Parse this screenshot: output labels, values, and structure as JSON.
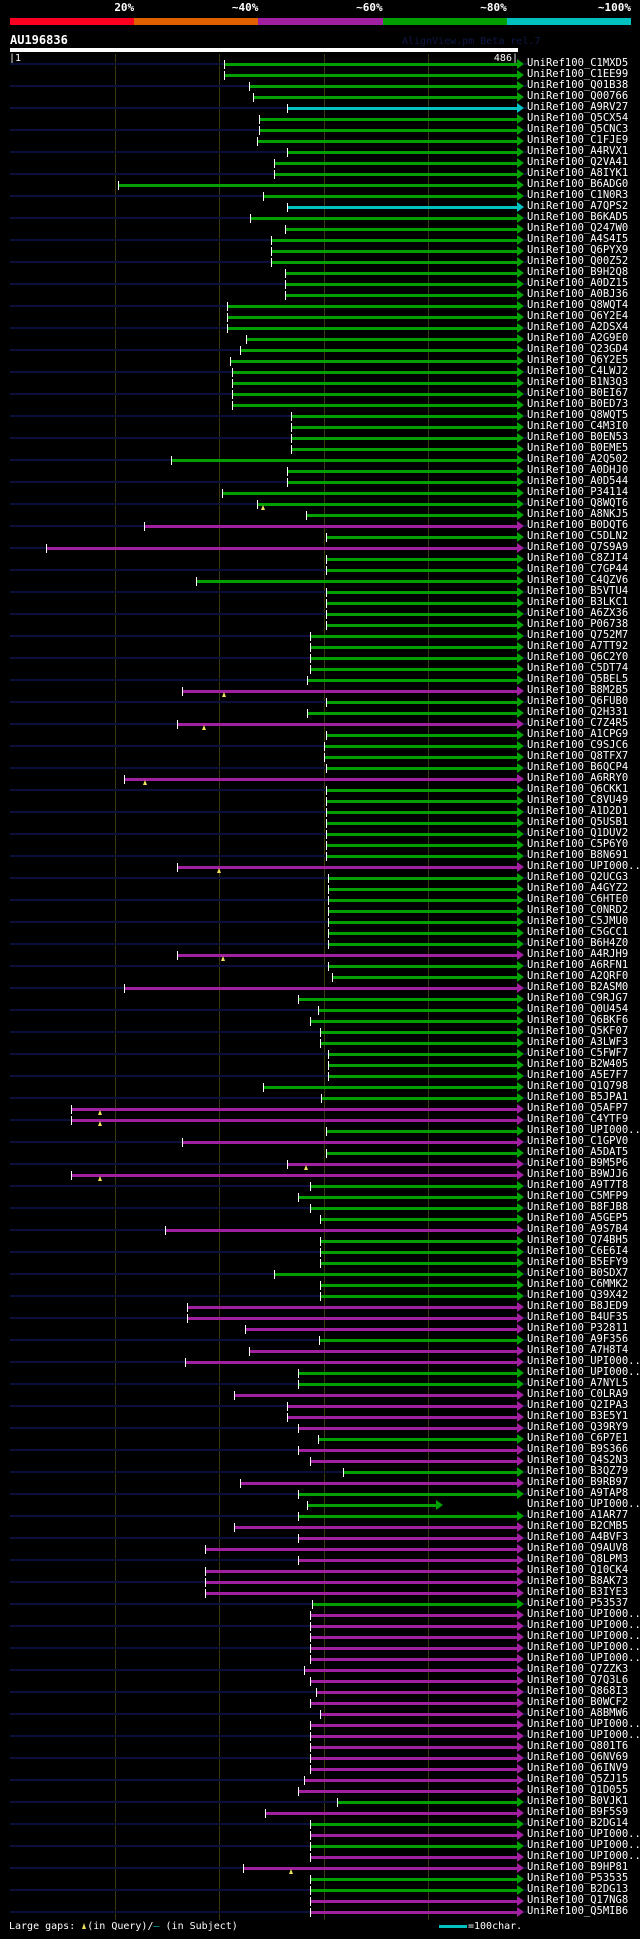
{
  "colors": {
    "g": "#00a000",
    "m": "#a020a0",
    "c": "#00c0c0",
    "red": "#ff0020",
    "orange": "#e06000"
  },
  "scale": {
    "labels": [
      "20%",
      "~40%",
      "~60%",
      "~80%",
      "~100%"
    ],
    "segments": [
      "#ff0020",
      "#e06000",
      "#a020a0",
      "#00a000",
      "#00c0c0"
    ]
  },
  "title": "AU196836",
  "credit": "AlignView.pm Beta rel.7",
  "axis": {
    "start_label": "|1",
    "end_label": "486|",
    "length": 486
  },
  "legend": {
    "prefix": "Large gaps: ",
    "query": "(in Query)/",
    "dash": "–",
    "subject": " (in Subject)",
    "scale": "=100char."
  },
  "rows": [
    [
      "UniRef100_C1MXD5",
      206,
      "g"
    ],
    [
      "UniRef100_C1EE99",
      206,
      "g"
    ],
    [
      "UniRef100_Q01B38",
      230,
      "g"
    ],
    [
      "UniRef100_Q00766",
      233,
      "g"
    ],
    [
      "UniRef100_A9RV27",
      266,
      "c"
    ],
    [
      "UniRef100_Q5CX54",
      239,
      "g"
    ],
    [
      "UniRef100_Q5CNC3",
      239,
      "g"
    ],
    [
      "UniRef100_C1FJE9",
      237,
      "g"
    ],
    [
      "UniRef100_A4RVX1",
      266,
      "g"
    ],
    [
      "UniRef100_Q2VA41",
      254,
      "g"
    ],
    [
      "UniRef100_A8IYK1",
      254,
      "g"
    ],
    [
      "UniRef100_B6ADG0",
      104,
      "g"
    ],
    [
      "UniRef100_C1N0R3",
      243,
      "g"
    ],
    [
      "UniRef100_A7QPS2",
      266,
      "c"
    ],
    [
      "UniRef100_B6KAD5",
      231,
      "g"
    ],
    [
      "UniRef100_Q247W0",
      264,
      "g"
    ],
    [
      "UniRef100_A4S4I5",
      251,
      "g"
    ],
    [
      "UniRef100_Q6PYX9",
      251,
      "g"
    ],
    [
      "UniRef100_Q00Z52",
      251,
      "g"
    ],
    [
      "UniRef100_B9H2Q8",
      264,
      "g"
    ],
    [
      "UniRef100_A0DZ15",
      264,
      "g"
    ],
    [
      "UniRef100_A0BJ36",
      264,
      "g"
    ],
    [
      "UniRef100_Q8WQT4",
      209,
      "g"
    ],
    [
      "UniRef100_Q6Y2E4",
      209,
      "g"
    ],
    [
      "UniRef100_A2DSX4",
      209,
      "g"
    ],
    [
      "UniRef100_A2G9E0",
      227,
      "g"
    ],
    [
      "UniRef100_Q23GD4",
      221,
      "g"
    ],
    [
      "UniRef100_Q6Y2E5",
      211,
      "g"
    ],
    [
      "UniRef100_C4LWJ2",
      213,
      "g"
    ],
    [
      "UniRef100_B1N3Q3",
      213,
      "g"
    ],
    [
      "UniRef100_B0EI67",
      213,
      "g"
    ],
    [
      "UniRef100_B0ED73",
      213,
      "g"
    ],
    [
      "UniRef100_Q8WQT5",
      270,
      "g"
    ],
    [
      "UniRef100_C4M3I0",
      270,
      "g"
    ],
    [
      "UniRef100_B0EN53",
      270,
      "g"
    ],
    [
      "UniRef100_B0EME5",
      270,
      "g"
    ],
    [
      "UniRef100_A2Q502",
      155,
      "g"
    ],
    [
      "UniRef100_A0DHJ0",
      266,
      "g"
    ],
    [
      "UniRef100_A0D544",
      266,
      "g"
    ],
    [
      "UniRef100_P34114",
      204,
      "g"
    ],
    [
      "UniRef100_Q8WQT6",
      237,
      "g",
      243
    ],
    [
      "UniRef100_A8NKJ5",
      284,
      "g"
    ],
    [
      "UniRef100_B0DQT6",
      129,
      "m"
    ],
    [
      "UniRef100_C5DLN2",
      303,
      "g"
    ],
    [
      "UniRef100_Q7S9A9",
      35,
      "m"
    ],
    [
      "UniRef100_C8ZJI4",
      303,
      "g"
    ],
    [
      "UniRef100_C7GP44",
      303,
      "g"
    ],
    [
      "UniRef100_C4QZV6",
      179,
      "g"
    ],
    [
      "UniRef100_B5VTU4",
      303,
      "g"
    ],
    [
      "UniRef100_B3LKC1",
      303,
      "g"
    ],
    [
      "UniRef100_A6ZX36",
      303,
      "g"
    ],
    [
      "UniRef100_P06738",
      303,
      "g"
    ],
    [
      "UniRef100_Q752M7",
      288,
      "g"
    ],
    [
      "UniRef100_A7TT92",
      288,
      "g"
    ],
    [
      "UniRef100_Q6C2Y0",
      288,
      "g"
    ],
    [
      "UniRef100_C5DT74",
      288,
      "g"
    ],
    [
      "UniRef100_Q5BEL5",
      285,
      "g"
    ],
    [
      "UniRef100_B8M2B5",
      166,
      "m",
      206
    ],
    [
      "UniRef100_Q6FUB0",
      303,
      "g"
    ],
    [
      "UniRef100_Q2H331",
      285,
      "g"
    ],
    [
      "UniRef100_C7Z4R5",
      161,
      "m",
      187
    ],
    [
      "UniRef100_A1CPG9",
      303,
      "g"
    ],
    [
      "UniRef100_C9SJC6",
      301,
      "g"
    ],
    [
      "UniRef100_Q8TFX7",
      301,
      "g"
    ],
    [
      "UniRef100_B6QCP4",
      303,
      "g"
    ],
    [
      "UniRef100_A6RRY0",
      110,
      "m",
      130
    ],
    [
      "UniRef100_Q6CKK1",
      303,
      "g"
    ],
    [
      "UniRef100_C8VU49",
      303,
      "g"
    ],
    [
      "UniRef100_A1D2D1",
      303,
      "g"
    ],
    [
      "UniRef100_Q5USB1",
      303,
      "g"
    ],
    [
      "UniRef100_Q1DUV2",
      303,
      "g"
    ],
    [
      "UniRef100_C5P6Y0",
      303,
      "g"
    ],
    [
      "UniRef100_B8N691",
      303,
      "g"
    ],
    [
      "UniRef100_UPI000..",
      161,
      "m",
      201
    ],
    [
      "UniRef100_Q2UCG3",
      305,
      "g"
    ],
    [
      "UniRef100_A4GYZ2",
      305,
      "g"
    ],
    [
      "UniRef100_C6HTE0",
      305,
      "g"
    ],
    [
      "UniRef100_C0NRD2",
      305,
      "g"
    ],
    [
      "UniRef100_C5JMU0",
      305,
      "g"
    ],
    [
      "UniRef100_C5GCC1",
      305,
      "g"
    ],
    [
      "UniRef100_B6H4Z0",
      305,
      "g"
    ],
    [
      "UniRef100_A4RJH9",
      161,
      "m",
      205
    ],
    [
      "UniRef100_A6RFN1",
      305,
      "g"
    ],
    [
      "UniRef100_A2QRF0",
      309,
      "g"
    ],
    [
      "UniRef100_B2ASM0",
      110,
      "m"
    ],
    [
      "UniRef100_C9RJG7",
      277,
      "g"
    ],
    [
      "UniRef100_Q0U454",
      296,
      "g"
    ],
    [
      "UniRef100_Q6BKF6",
      288,
      "g"
    ],
    [
      "UniRef100_Q5KF07",
      298,
      "g"
    ],
    [
      "UniRef100_A3LWF3",
      298,
      "g"
    ],
    [
      "UniRef100_C5FWF7",
      305,
      "g"
    ],
    [
      "UniRef100_B2W405",
      305,
      "g"
    ],
    [
      "UniRef100_A5E7F7",
      305,
      "g"
    ],
    [
      "UniRef100_Q1Q798",
      243,
      "g"
    ],
    [
      "UniRef100_B5JPA1",
      299,
      "g"
    ],
    [
      "UniRef100_Q5AFP7",
      59,
      "m",
      87
    ],
    [
      "UniRef100_C4YTF9",
      59,
      "m",
      87
    ],
    [
      "UniRef100_UPI000..",
      303,
      "g"
    ],
    [
      "UniRef100_C1GPV0",
      166,
      "m"
    ],
    [
      "UniRef100_A5DAT5",
      303,
      "g"
    ],
    [
      "UniRef100_B9M5P6",
      266,
      "m",
      284
    ],
    [
      "UniRef100_B9WJJ6",
      59,
      "m",
      87
    ],
    [
      "UniRef100_A9T7T8",
      288,
      "g"
    ],
    [
      "UniRef100_C5MFP9",
      277,
      "g"
    ],
    [
      "UniRef100_B8FJB8",
      288,
      "g"
    ],
    [
      "UniRef100_A5GEP5",
      298,
      "g"
    ],
    [
      "UniRef100_A9S7B4",
      149,
      "m"
    ],
    [
      "UniRef100_Q74BH5",
      298,
      "g"
    ],
    [
      "UniRef100_C6E6I4",
      298,
      "g"
    ],
    [
      "UniRef100_B5EFY9",
      298,
      "g"
    ],
    [
      "UniRef100_B0SDX7",
      254,
      "g"
    ],
    [
      "UniRef100_C6MMK2",
      298,
      "g"
    ],
    [
      "UniRef100_Q39X42",
      298,
      "g"
    ],
    [
      "UniRef100_B8JED9",
      170,
      "m"
    ],
    [
      "UniRef100_B4UF35",
      170,
      "m"
    ],
    [
      "UniRef100_P32811",
      226,
      "m"
    ],
    [
      "UniRef100_A9F356",
      297,
      "g"
    ],
    [
      "UniRef100_A7H8T4",
      230,
      "m"
    ],
    [
      "UniRef100_UPI000..",
      168,
      "m"
    ],
    [
      "UniRef100_UPI000..",
      277,
      "g"
    ],
    [
      "UniRef100_A7NYL5",
      277,
      "g"
    ],
    [
      "UniRef100_C0LRA9",
      215,
      "m"
    ],
    [
      "UniRef100_Q2IPA3",
      266,
      "m"
    ],
    [
      "UniRef100_B3E5Y1",
      266,
      "m"
    ],
    [
      "UniRef100_Q39RY9",
      277,
      "m"
    ],
    [
      "UniRef100_C6P7E1",
      296,
      "g"
    ],
    [
      "UniRef100_B9S366",
      277,
      "m"
    ],
    [
      "UniRef100_Q4S2N3",
      288,
      "m"
    ],
    [
      "UniRef100_B3QZ79",
      320,
      "g"
    ],
    [
      "UniRef100_B9RB97",
      221,
      "m"
    ],
    [
      "UniRef100_A9TAP8",
      277,
      "g"
    ],
    [
      "UniRef100_UPI000..",
      285,
      "g",
      null,
      409
    ],
    [
      "UniRef100_A1AR77",
      277,
      "g"
    ],
    [
      "UniRef100_B2CMB5",
      215,
      "m"
    ],
    [
      "UniRef100_A4BVF3",
      277,
      "m"
    ],
    [
      "UniRef100_Q9AUV8",
      188,
      "m"
    ],
    [
      "UniRef100_Q8LPM3",
      277,
      "m"
    ],
    [
      "UniRef100_Q10CK4",
      188,
      "m"
    ],
    [
      "UniRef100_B8AK73",
      188,
      "m"
    ],
    [
      "UniRef100_B3IYE3",
      188,
      "m"
    ],
    [
      "UniRef100_P53537",
      290,
      "g"
    ],
    [
      "UniRef100_UPI000..",
      288,
      "m"
    ],
    [
      "UniRef100_UPI000..",
      288,
      "m"
    ],
    [
      "UniRef100_UPI000..",
      288,
      "m"
    ],
    [
      "UniRef100_UPI000..",
      288,
      "m"
    ],
    [
      "UniRef100_UPI000..",
      288,
      "m"
    ],
    [
      "UniRef100_Q7ZZK3",
      282,
      "m"
    ],
    [
      "UniRef100_Q7Q3L6",
      288,
      "m"
    ],
    [
      "UniRef100_Q868I3",
      294,
      "m"
    ],
    [
      "UniRef100_B0WCF2",
      288,
      "m"
    ],
    [
      "UniRef100_A8BMW6",
      298,
      "m"
    ],
    [
      "UniRef100_UPI000..",
      288,
      "m"
    ],
    [
      "UniRef100_UPI000..",
      288,
      "m"
    ],
    [
      "UniRef100_Q801T6",
      288,
      "m"
    ],
    [
      "UniRef100_Q6NV69",
      288,
      "m"
    ],
    [
      "UniRef100_Q6INV9",
      288,
      "m"
    ],
    [
      "UniRef100_Q5ZJ15",
      282,
      "m"
    ],
    [
      "UniRef100_Q1D055",
      277,
      "m"
    ],
    [
      "UniRef100_B0VJK1",
      314,
      "g"
    ],
    [
      "UniRef100_B9F5S9",
      245,
      "m"
    ],
    [
      "UniRef100_B2DG14",
      288,
      "g"
    ],
    [
      "UniRef100_UPI000..",
      288,
      "m"
    ],
    [
      "UniRef100_UPI000..",
      288,
      "g"
    ],
    [
      "UniRef100_UPI000..",
      288,
      "m"
    ],
    [
      "UniRef100_B9HP81",
      224,
      "m",
      270
    ],
    [
      "UniRef100_P53535",
      288,
      "g"
    ],
    [
      "UniRef100_B2DG13",
      288,
      "g"
    ],
    [
      "UniRef100_Q17NG8",
      288,
      "m"
    ],
    [
      "UniRef100_Q5MIB6",
      288,
      "m"
    ]
  ]
}
